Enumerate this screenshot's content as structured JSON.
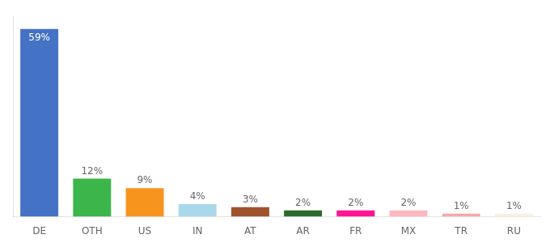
{
  "chart_data": {
    "type": "bar",
    "categories": [
      "DE",
      "OTH",
      "US",
      "IN",
      "AT",
      "AR",
      "FR",
      "MX",
      "TR",
      "RU"
    ],
    "values": [
      59,
      12,
      9,
      4,
      3,
      2,
      2,
      2,
      1,
      1
    ],
    "value_labels": [
      "59%",
      "12%",
      "9%",
      "4%",
      "3%",
      "2%",
      "2%",
      "2%",
      "1%",
      "1%"
    ],
    "colors": [
      "#4472c4",
      "#3cb54a",
      "#f7941d",
      "#a8d8ea",
      "#a0522d",
      "#2d6a2d",
      "#ff1493",
      "#ffb6c1",
      "#f4a9a8",
      "#f5f0e0"
    ],
    "ylim": [
      0,
      63
    ],
    "grid": false,
    "data_labels": true,
    "tick_labels": "x"
  }
}
